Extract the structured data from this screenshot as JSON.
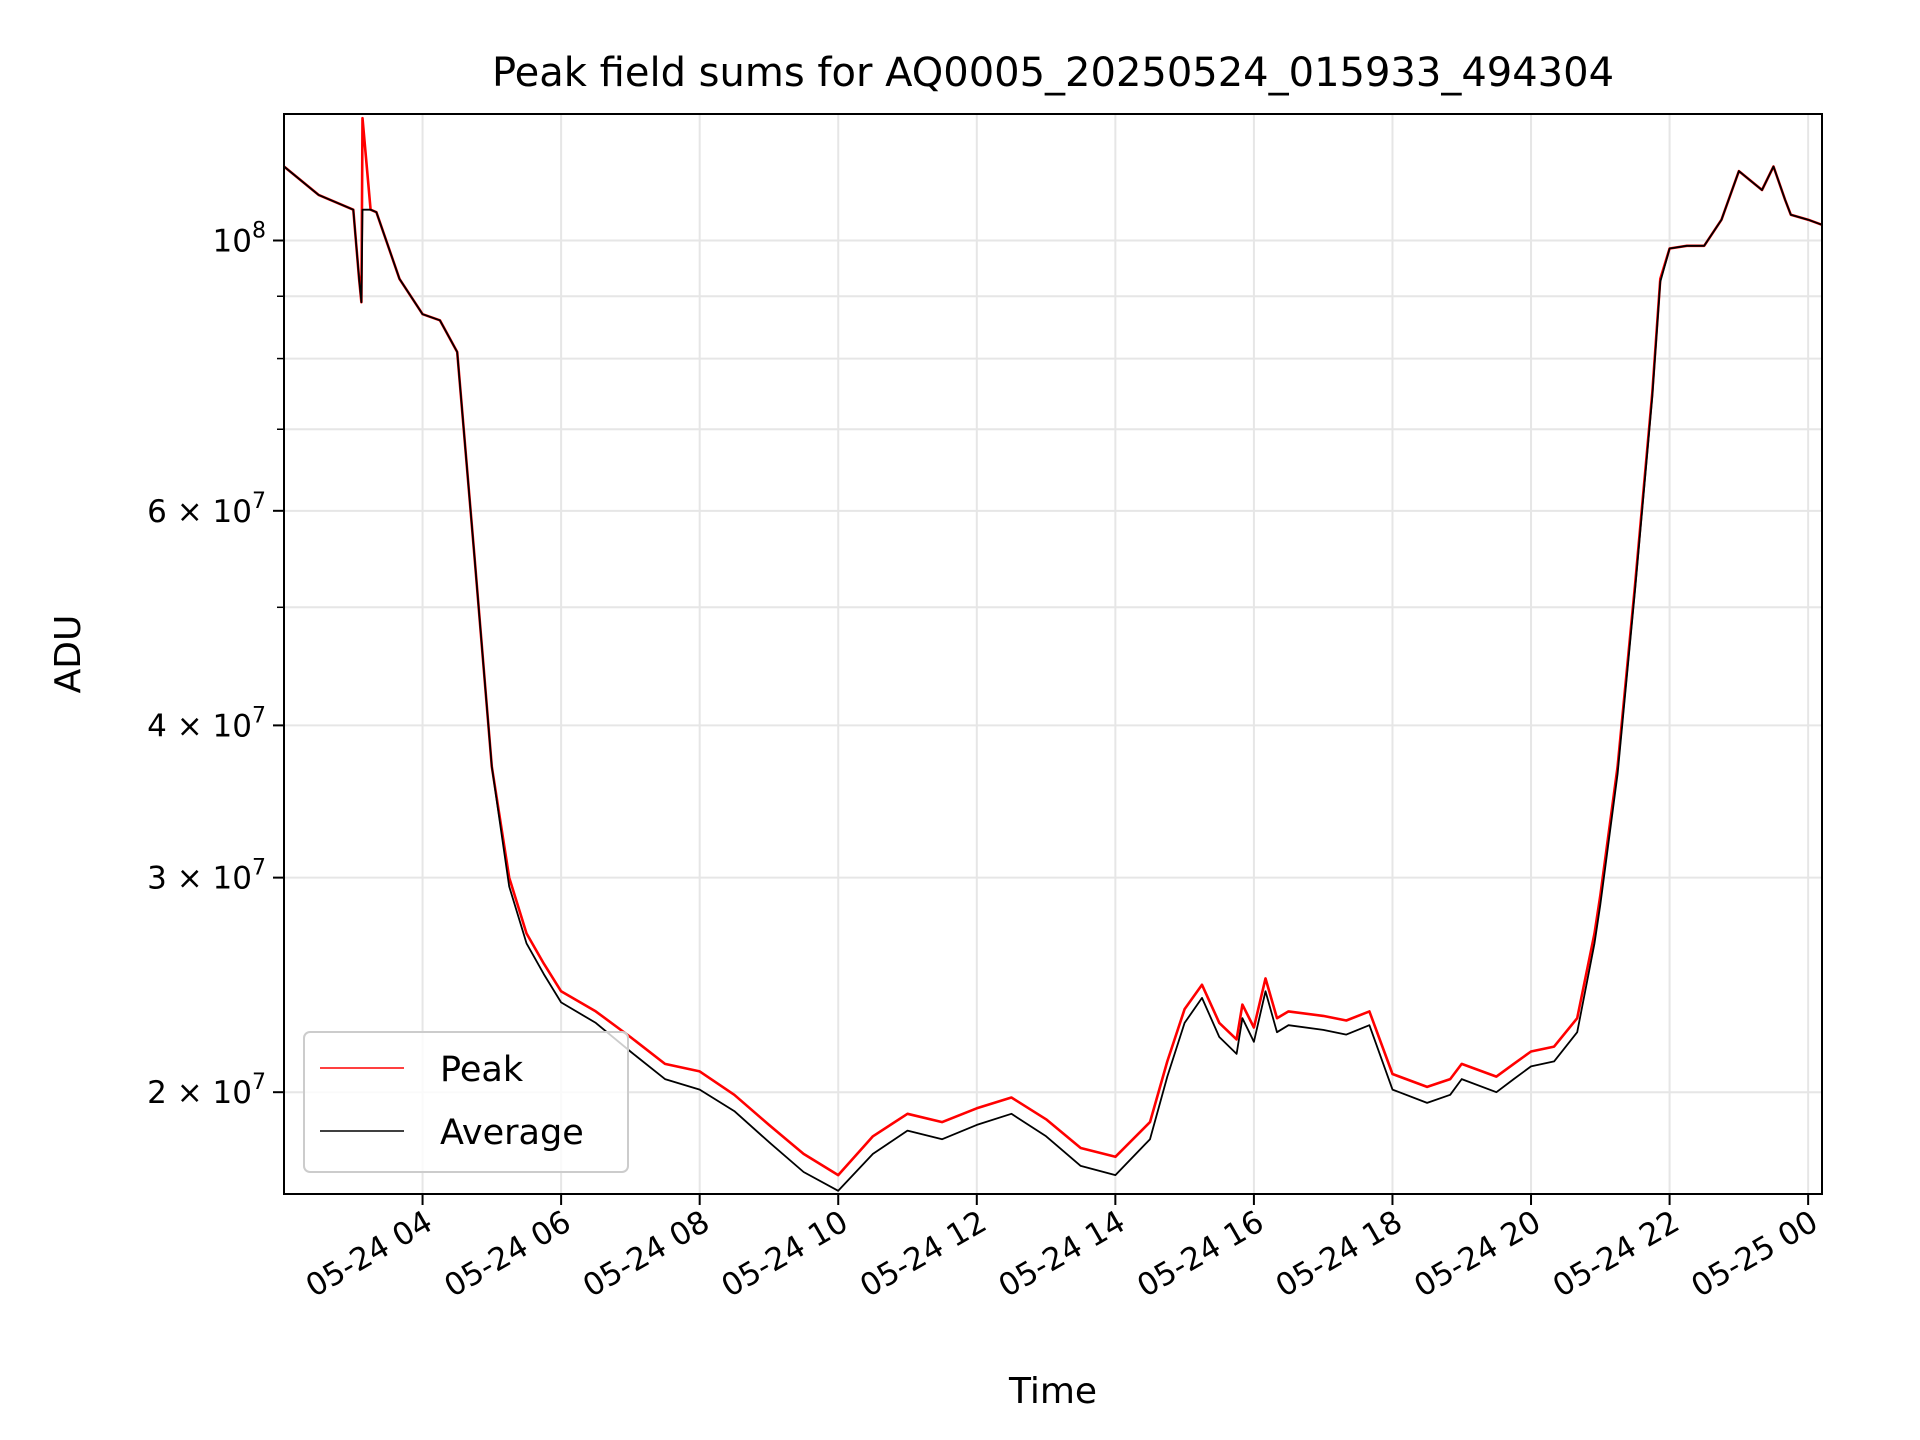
{
  "chart_data": {
    "type": "line",
    "title": "Peak field sums for AQ0005_20250524_015933_494304",
    "xlabel": "Time",
    "ylabel": "ADU",
    "yscale": "log",
    "ylim": [
      16500000,
      127000000
    ],
    "xlim": [
      "2025-05-24 02:00",
      "2025-05-25 00:12"
    ],
    "grid": true,
    "legend": {
      "position": "lower-left",
      "entries": [
        "Peak",
        "Average"
      ]
    },
    "x_ticks": [
      "05-24 04",
      "05-24 06",
      "05-24 08",
      "05-24 10",
      "05-24 12",
      "05-24 14",
      "05-24 16",
      "05-24 18",
      "05-24 20",
      "05-24 22",
      "05-25 00"
    ],
    "y_ticks": [
      {
        "value": 20000000,
        "label": "2 × 10^7",
        "base": "2 × 10",
        "exp": "7"
      },
      {
        "value": 30000000,
        "label": "3 × 10^7",
        "base": "3 × 10",
        "exp": "7"
      },
      {
        "value": 40000000,
        "label": "4 × 10^7",
        "base": "4 × 10",
        "exp": "7"
      },
      {
        "value": 60000000,
        "label": "6 × 10^7",
        "base": "6 × 10",
        "exp": "7"
      },
      {
        "value": 100000000,
        "label": "10^8",
        "base": "10",
        "exp": "8"
      }
    ],
    "series": [
      {
        "name": "Peak",
        "color": "#ff0000",
        "x": [
          "2025-05-24 02:00",
          "2025-05-24 02:30",
          "2025-05-24 03:00",
          "2025-05-24 03:05",
          "2025-05-24 03:07",
          "2025-05-24 03:08",
          "2025-05-24 03:15",
          "2025-05-24 03:20",
          "2025-05-24 03:40",
          "2025-05-24 04:00",
          "2025-05-24 04:15",
          "2025-05-24 04:30",
          "2025-05-24 04:45",
          "2025-05-24 05:00",
          "2025-05-24 05:15",
          "2025-05-24 05:30",
          "2025-05-24 05:45",
          "2025-05-24 06:00",
          "2025-05-24 06:30",
          "2025-05-24 07:00",
          "2025-05-24 07:30",
          "2025-05-24 08:00",
          "2025-05-24 08:30",
          "2025-05-24 09:00",
          "2025-05-24 09:30",
          "2025-05-24 10:00",
          "2025-05-24 10:30",
          "2025-05-24 11:00",
          "2025-05-24 11:30",
          "2025-05-24 12:00",
          "2025-05-24 12:30",
          "2025-05-24 13:00",
          "2025-05-24 13:30",
          "2025-05-24 14:00",
          "2025-05-24 14:30",
          "2025-05-24 14:45",
          "2025-05-24 15:00",
          "2025-05-24 15:15",
          "2025-05-24 15:30",
          "2025-05-24 15:45",
          "2025-05-24 15:50",
          "2025-05-24 16:00",
          "2025-05-24 16:10",
          "2025-05-24 16:20",
          "2025-05-24 16:30",
          "2025-05-24 17:00",
          "2025-05-24 17:20",
          "2025-05-24 17:40",
          "2025-05-24 18:00",
          "2025-05-24 18:30",
          "2025-05-24 18:50",
          "2025-05-24 19:00",
          "2025-05-24 19:30",
          "2025-05-24 19:45",
          "2025-05-24 20:00",
          "2025-05-24 20:20",
          "2025-05-24 20:40",
          "2025-05-24 20:55",
          "2025-05-24 21:00",
          "2025-05-24 21:15",
          "2025-05-24 21:30",
          "2025-05-24 21:45",
          "2025-05-24 21:52",
          "2025-05-24 22:00",
          "2025-05-24 22:15",
          "2025-05-24 22:30",
          "2025-05-24 22:45",
          "2025-05-24 23:00",
          "2025-05-24 23:15",
          "2025-05-24 23:20",
          "2025-05-24 23:30",
          "2025-05-24 23:40",
          "2025-05-24 23:45",
          "2025-05-25 00:00",
          "2025-05-25 00:12"
        ],
        "values": [
          115000000,
          109000000,
          106000000,
          93000000,
          89000000,
          126000000,
          106000000,
          105500000,
          93000000,
          87000000,
          86000000,
          81000000,
          55000000,
          37000000,
          30000000,
          27000000,
          25500000,
          24200000,
          23300000,
          22200000,
          21100000,
          20800000,
          19900000,
          18800000,
          17800000,
          17100000,
          18400000,
          19200000,
          18900000,
          19400000,
          19800000,
          19000000,
          18000000,
          17700000,
          18900000,
          21200000,
          23400000,
          24500000,
          22800000,
          22100000,
          23600000,
          22600000,
          24800000,
          23000000,
          23300000,
          23100000,
          22900000,
          23300000,
          20700000,
          20200000,
          20500000,
          21100000,
          20600000,
          21100000,
          21600000,
          21800000,
          23000000,
          27000000,
          29000000,
          37000000,
          52000000,
          75000000,
          93000000,
          98500000,
          99000000,
          99000000,
          104000000,
          114000000,
          111000000,
          110000000,
          115000000,
          108000000,
          105000000,
          104000000,
          103000000
        ]
      },
      {
        "name": "Average",
        "color": "#000000",
        "x": [
          "2025-05-24 02:00",
          "2025-05-24 02:30",
          "2025-05-24 03:00",
          "2025-05-24 03:05",
          "2025-05-24 03:07",
          "2025-05-24 03:08",
          "2025-05-24 03:15",
          "2025-05-24 03:20",
          "2025-05-24 03:40",
          "2025-05-24 04:00",
          "2025-05-24 04:15",
          "2025-05-24 04:30",
          "2025-05-24 04:45",
          "2025-05-24 05:00",
          "2025-05-24 05:15",
          "2025-05-24 05:30",
          "2025-05-24 05:45",
          "2025-05-24 06:00",
          "2025-05-24 06:30",
          "2025-05-24 07:00",
          "2025-05-24 07:30",
          "2025-05-24 08:00",
          "2025-05-24 08:30",
          "2025-05-24 09:00",
          "2025-05-24 09:30",
          "2025-05-24 10:00",
          "2025-05-24 10:30",
          "2025-05-24 11:00",
          "2025-05-24 11:30",
          "2025-05-24 12:00",
          "2025-05-24 12:30",
          "2025-05-24 13:00",
          "2025-05-24 13:30",
          "2025-05-24 14:00",
          "2025-05-24 14:30",
          "2025-05-24 14:45",
          "2025-05-24 15:00",
          "2025-05-24 15:15",
          "2025-05-24 15:30",
          "2025-05-24 15:45",
          "2025-05-24 15:50",
          "2025-05-24 16:00",
          "2025-05-24 16:10",
          "2025-05-24 16:20",
          "2025-05-24 16:30",
          "2025-05-24 17:00",
          "2025-05-24 17:20",
          "2025-05-24 17:40",
          "2025-05-24 18:00",
          "2025-05-24 18:30",
          "2025-05-24 18:50",
          "2025-05-24 19:00",
          "2025-05-24 19:30",
          "2025-05-24 19:45",
          "2025-05-24 20:00",
          "2025-05-24 20:20",
          "2025-05-24 20:40",
          "2025-05-24 20:55",
          "2025-05-24 21:00",
          "2025-05-24 21:15",
          "2025-05-24 21:30",
          "2025-05-24 21:45",
          "2025-05-24 21:52",
          "2025-05-24 22:00",
          "2025-05-24 22:15",
          "2025-05-24 22:30",
          "2025-05-24 22:45",
          "2025-05-24 23:00",
          "2025-05-24 23:15",
          "2025-05-24 23:20",
          "2025-05-24 23:30",
          "2025-05-24 23:40",
          "2025-05-24 23:45",
          "2025-05-25 00:00",
          "2025-05-25 00:12"
        ],
        "values": [
          115000000,
          109000000,
          106000000,
          93000000,
          89000000,
          106000000,
          106000000,
          105500000,
          93000000,
          87000000,
          86000000,
          81000000,
          55000000,
          37000000,
          29500000,
          26500000,
          25000000,
          23700000,
          22800000,
          21600000,
          20500000,
          20100000,
          19300000,
          18200000,
          17200000,
          16600000,
          17800000,
          18600000,
          18300000,
          18800000,
          19200000,
          18400000,
          17400000,
          17100000,
          18300000,
          20600000,
          22800000,
          23900000,
          22200000,
          21500000,
          23000000,
          22000000,
          24200000,
          22400000,
          22700000,
          22500000,
          22300000,
          22700000,
          20100000,
          19600000,
          19900000,
          20500000,
          20000000,
          20500000,
          21000000,
          21200000,
          22400000,
          26500000,
          28500000,
          36500000,
          51500000,
          74500000,
          92500000,
          98500000,
          99000000,
          99000000,
          104000000,
          114000000,
          111000000,
          110000000,
          115000000,
          108000000,
          105000000,
          104000000,
          103000000
        ]
      }
    ]
  }
}
